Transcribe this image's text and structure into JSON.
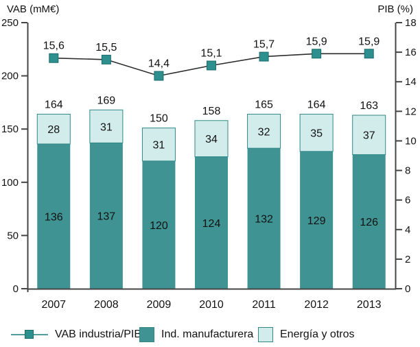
{
  "chart_data": {
    "type": "bar",
    "subtype": "stacked-bars-with-line-overlay",
    "categories": [
      "2007",
      "2008",
      "2009",
      "2010",
      "2011",
      "2012",
      "2013"
    ],
    "bar_series": [
      {
        "name": "Ind. manufacturera",
        "values": [
          136,
          137,
          120,
          124,
          132,
          129,
          126
        ],
        "color": "#3F9392"
      },
      {
        "name": "Energía y otros",
        "values": [
          28,
          31,
          31,
          34,
          32,
          35,
          37
        ],
        "color": "#D2ECEB",
        "border_color": "#2E8888"
      }
    ],
    "bar_totals": [
      "164",
      "169",
      "150",
      "158",
      "165",
      "164",
      "163"
    ],
    "line_series": {
      "name": "VAB industria/PIB",
      "values": [
        15.6,
        15.5,
        14.4,
        15.1,
        15.7,
        15.9,
        15.9
      ],
      "labels": [
        "15,6",
        "15,5",
        "14,4",
        "15,1",
        "15,7",
        "15,9",
        "15,9"
      ],
      "line_color": "#2B2B2B",
      "marker_color": "#2E8F8F",
      "marker_border_color": "#1C6B6B"
    },
    "left_axis": {
      "label": "VAB (mM€)",
      "ticks": [
        0,
        50,
        100,
        150,
        200,
        250
      ],
      "min": 0,
      "max": 250
    },
    "right_axis": {
      "label": "PIB (%)",
      "ticks": [
        0,
        2,
        4,
        6,
        8,
        10,
        12,
        14,
        16,
        18
      ],
      "min": 0,
      "max": 18
    },
    "legend": [
      {
        "label": "VAB industria/PIB",
        "swatch": "line-marker"
      },
      {
        "label": "Ind. manufacturera",
        "swatch": "square-dark"
      },
      {
        "label": "Energía y otros",
        "swatch": "square-light"
      }
    ],
    "grid": "off",
    "legend_position": "bottom",
    "axis_color": "#444444",
    "background": "#ffffff"
  }
}
